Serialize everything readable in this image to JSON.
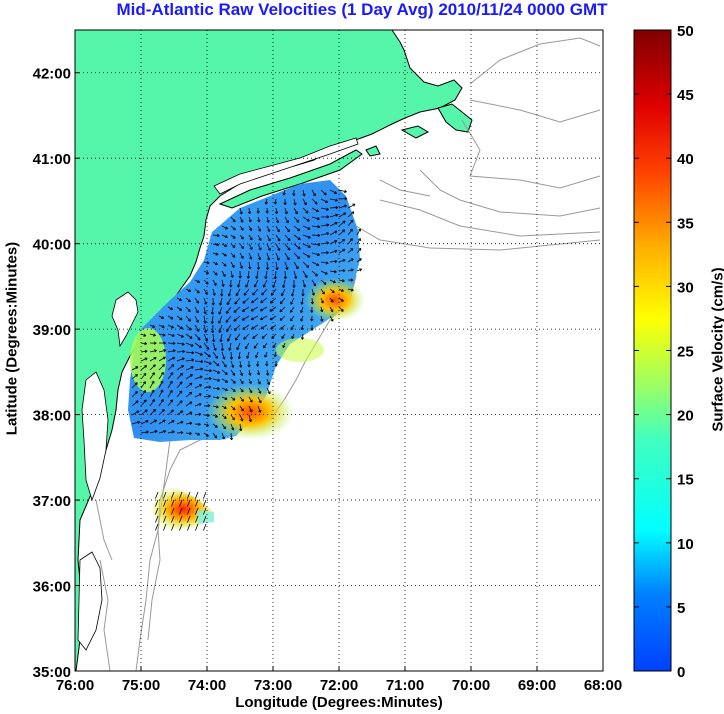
{
  "title": "Mid-Atlantic Raw Velocities (1 Day Avg) 2010/11/24 0000 GMT",
  "map": {
    "xlabel": "Longitude (Degrees:Minutes)",
    "ylabel": "Latitude (Degrees:Minutes)",
    "lon_range": [
      -76,
      -68
    ],
    "lat_range": [
      35,
      42.5
    ],
    "x_ticks": [
      {
        "value": -76,
        "label": "76:00"
      },
      {
        "value": -75,
        "label": "75:00"
      },
      {
        "value": -74,
        "label": "74:00"
      },
      {
        "value": -73,
        "label": "73:00"
      },
      {
        "value": -72,
        "label": "72:00"
      },
      {
        "value": -71,
        "label": "71:00"
      },
      {
        "value": -70,
        "label": "70:00"
      },
      {
        "value": -69,
        "label": "69:00"
      },
      {
        "value": -68,
        "label": "68:00"
      }
    ],
    "y_ticks": [
      {
        "value": 35,
        "label": "35:00"
      },
      {
        "value": 36,
        "label": "36:00"
      },
      {
        "value": 37,
        "label": "37:00"
      },
      {
        "value": 38,
        "label": "38:00"
      },
      {
        "value": 39,
        "label": "39:00"
      },
      {
        "value": 40,
        "label": "40:00"
      },
      {
        "value": 41,
        "label": "41:00"
      },
      {
        "value": 42,
        "label": "42:00"
      }
    ],
    "grid": "dotted",
    "colors": {
      "land": "#55f5aa",
      "coast": "#000000",
      "isobath": "#999999",
      "arrows": "#000000"
    }
  },
  "colorbar": {
    "label": "Surface Velocity (cm/s)",
    "min": 0,
    "max": 50,
    "ticks": [
      0,
      5,
      10,
      15,
      20,
      25,
      30,
      35,
      40,
      45,
      50
    ],
    "colormap": "jet"
  }
}
